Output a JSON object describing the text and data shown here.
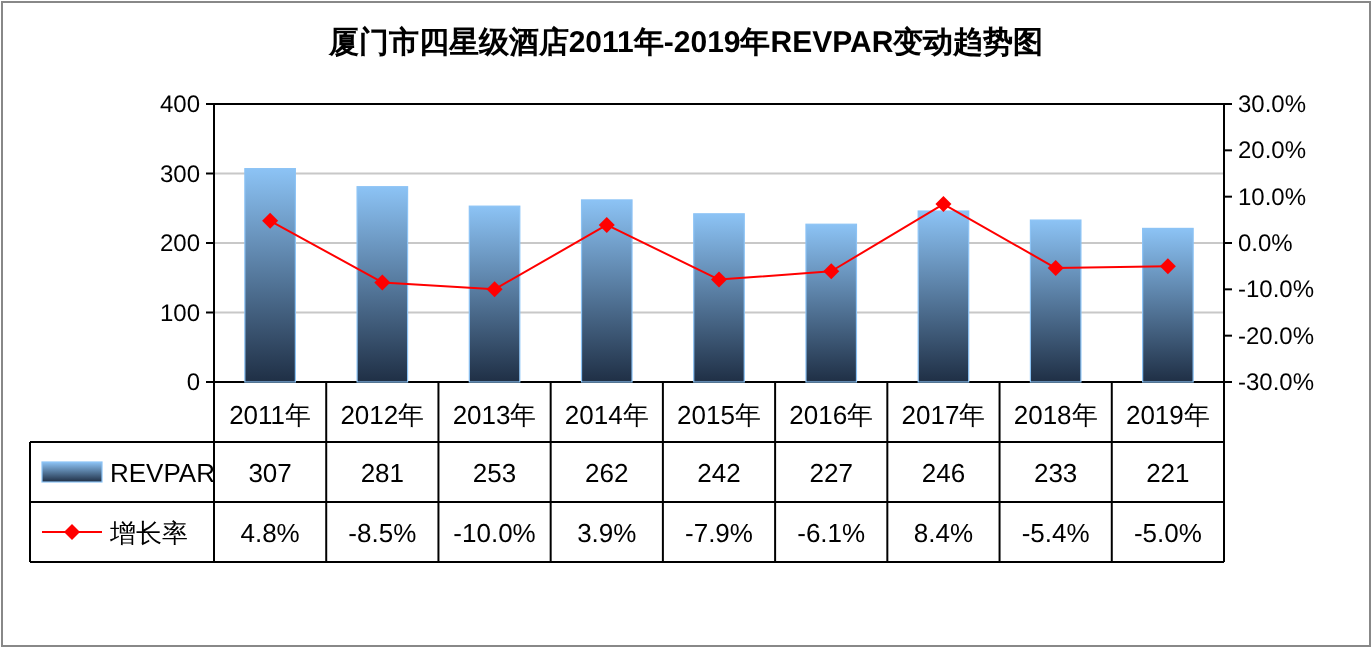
{
  "chart_data": {
    "type": "bar",
    "title": "厦门市四星级酒店2011年-2019年REVPAR变动趋势图",
    "categories": [
      "2011年",
      "2012年",
      "2013年",
      "2014年",
      "2015年",
      "2016年",
      "2017年",
      "2018年",
      "2019年"
    ],
    "series": [
      {
        "name": "REVPAR",
        "color": "#8cc3f5",
        "values": [
          307,
          281,
          253,
          262,
          242,
          227,
          246,
          233,
          221
        ],
        "value_labels": [
          "307",
          "281",
          "253",
          "262",
          "242",
          "227",
          "246",
          "233",
          "221"
        ]
      },
      {
        "name": "增长率",
        "type": "line",
        "axis": "y2",
        "color": "#ff0000",
        "values": [
          4.8,
          -8.5,
          -10.0,
          3.9,
          -7.9,
          -6.1,
          8.4,
          -5.4,
          -5.0
        ],
        "value_labels": [
          "4.8%",
          "-8.5%",
          "-10.0%",
          "3.9%",
          "-7.9%",
          "-6.1%",
          "8.4%",
          "-5.4%",
          "-5.0%"
        ]
      }
    ],
    "ylim": [
      0,
      400
    ],
    "yticks": [
      0,
      100,
      200,
      300,
      400
    ],
    "y2lim": [
      -30,
      30
    ],
    "y2ticks": [
      {
        "value": -30,
        "label": "-30.0%"
      },
      {
        "value": -20,
        "label": "-20.0%"
      },
      {
        "value": -10,
        "label": "-10.0%"
      },
      {
        "value": 0,
        "label": "0.0%"
      },
      {
        "value": 10,
        "label": "10.0%"
      },
      {
        "value": 20,
        "label": "20.0%"
      },
      {
        "value": 30,
        "label": "30.0%"
      }
    ],
    "grid": "y",
    "legend": "bottom left",
    "marker": "diamond",
    "line_style": "solid"
  }
}
